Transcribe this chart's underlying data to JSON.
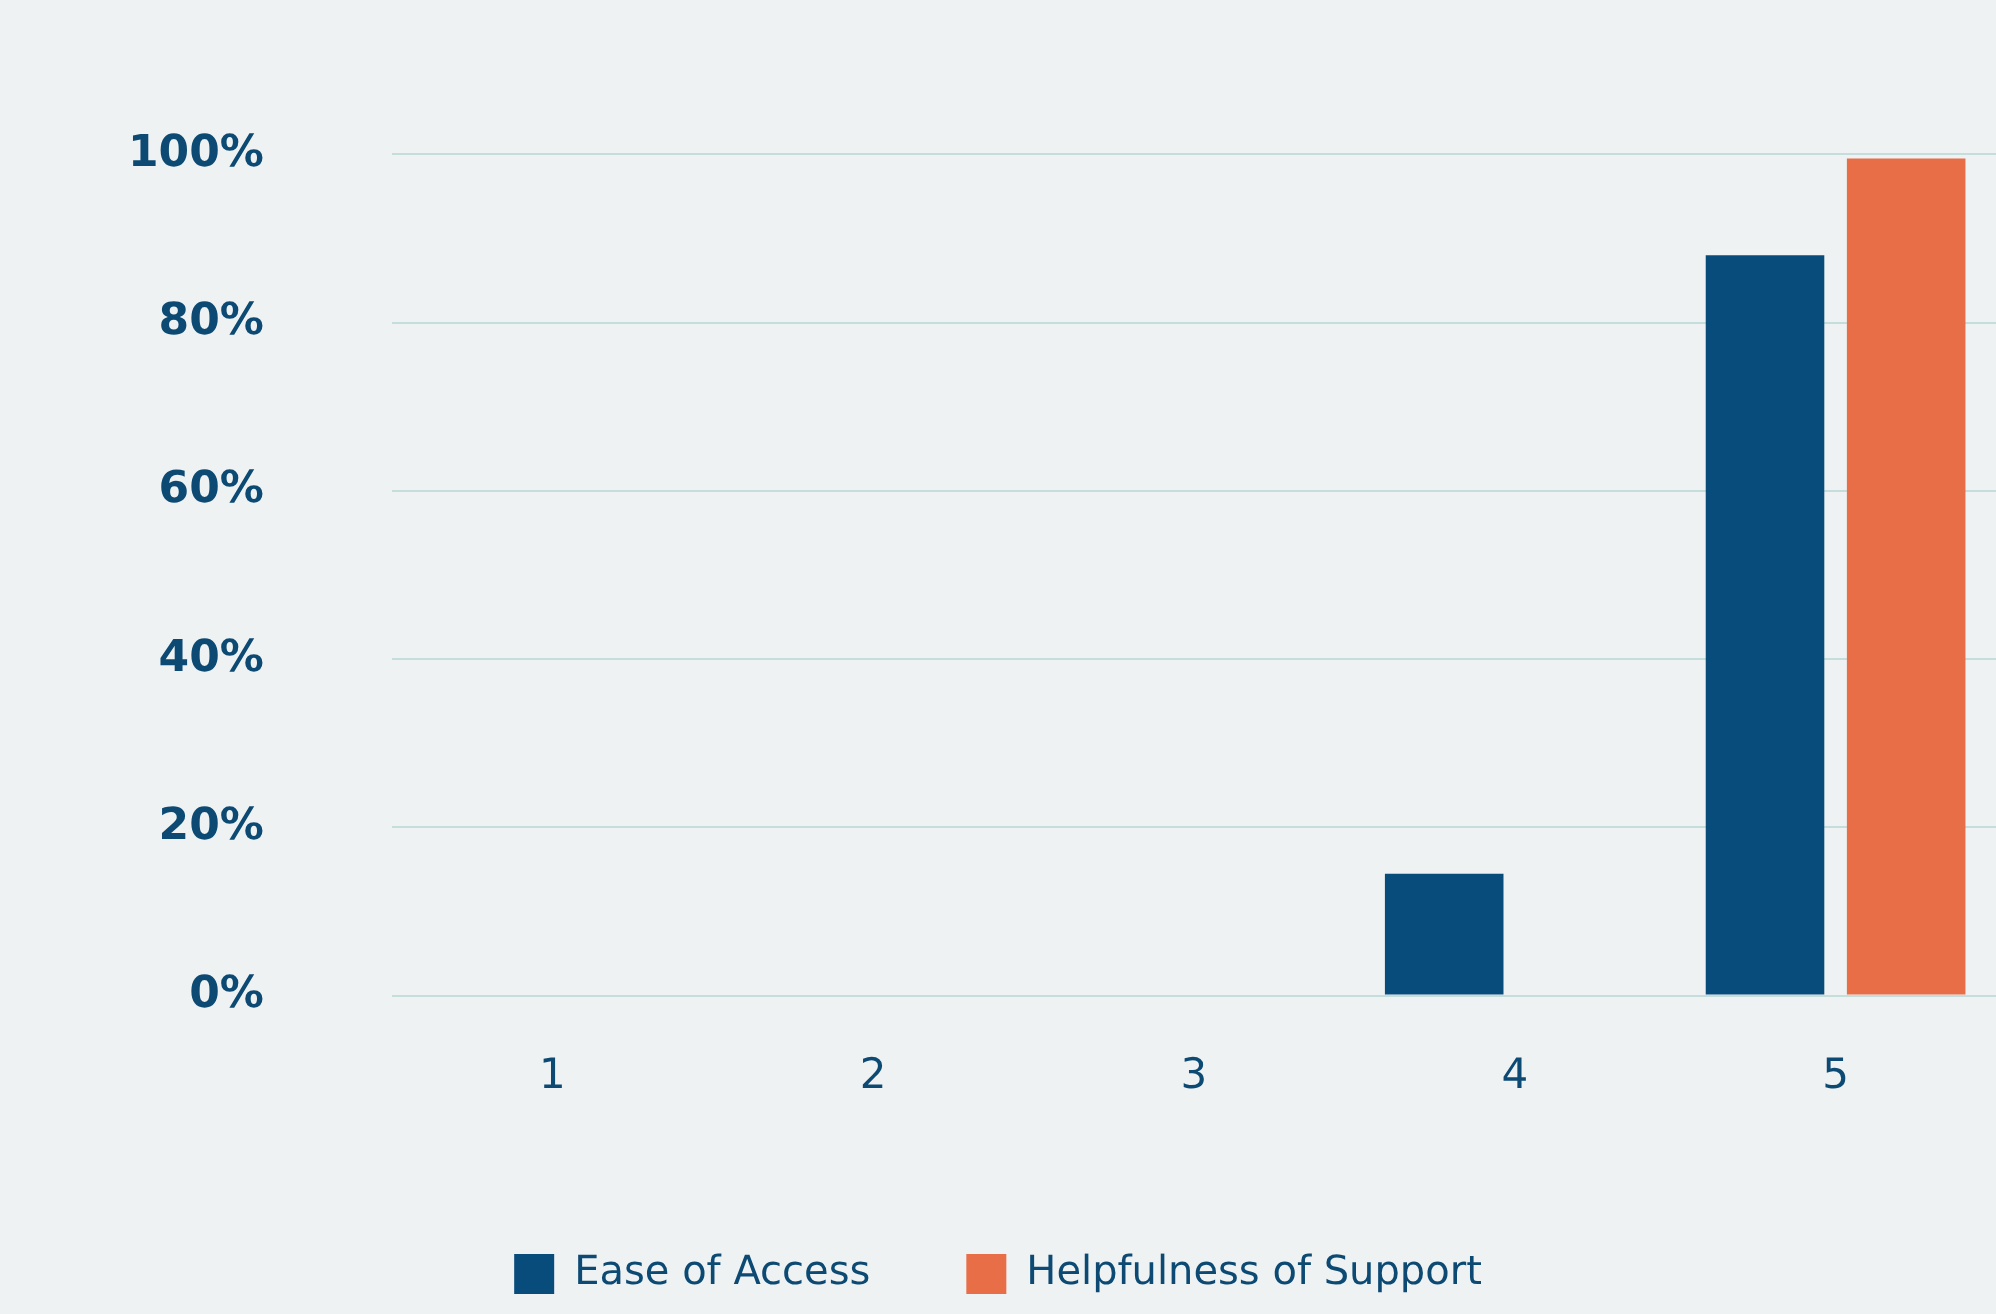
{
  "chart_data": {
    "type": "bar",
    "categories": [
      "1",
      "2",
      "3",
      "4",
      "5"
    ],
    "series": [
      {
        "name": "Ease of Access",
        "color": "#074c7a",
        "values": [
          0,
          0,
          0,
          14.5,
          88
        ]
      },
      {
        "name": "Helpfulness of Support",
        "color": "#e86e48",
        "values": [
          0,
          0,
          0,
          0,
          99.5
        ]
      }
    ],
    "ylim": [
      0,
      100
    ],
    "yticks": [
      {
        "value": 0,
        "label": "0%"
      },
      {
        "value": 20,
        "label": "20%"
      },
      {
        "value": 40,
        "label": "40%"
      },
      {
        "value": 60,
        "label": "60%"
      },
      {
        "value": 80,
        "label": "80%"
      },
      {
        "value": 100,
        "label": "100%"
      }
    ],
    "grid": "y",
    "legend": "bottom"
  }
}
